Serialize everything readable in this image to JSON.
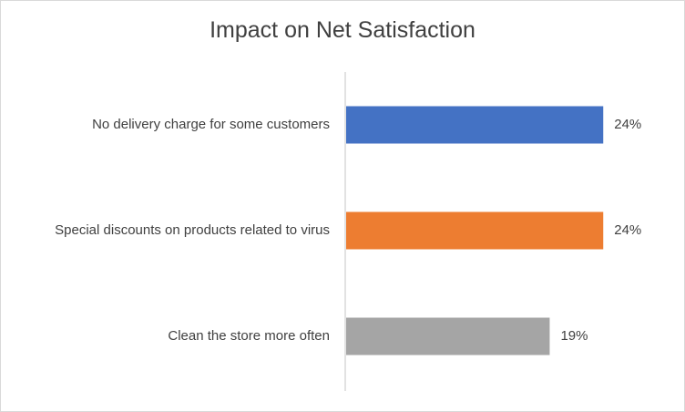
{
  "chart_data": {
    "type": "bar",
    "orientation": "horizontal",
    "title": "Impact on Net Satisfaction",
    "categories": [
      "No delivery charge for some customers",
      "Special discounts on products related to virus",
      "Clean the store more often"
    ],
    "values": [
      24,
      24,
      19
    ],
    "data_labels": [
      "24%",
      "24%",
      "19%"
    ],
    "colors": [
      "#4472c4",
      "#ed7d31",
      "#a5a5a5"
    ],
    "xlim": [
      0,
      25
    ],
    "grid": false,
    "legend": "none"
  }
}
